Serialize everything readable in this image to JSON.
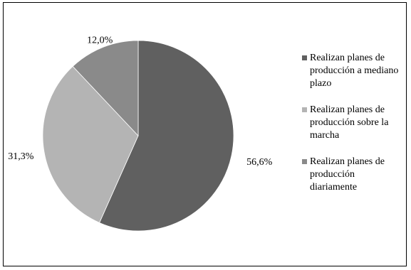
{
  "chart_data": {
    "type": "pie",
    "title": "",
    "categories": [
      "Realizan planes de producción a mediano plazo",
      "Realizan planes de producción sobre la marcha",
      "Realizan planes de producción diariamente"
    ],
    "values": [
      56.6,
      31.3,
      12.0
    ],
    "value_labels": [
      "56,6%",
      "31,3%",
      "12,0%"
    ],
    "colors": [
      "#606060",
      "#b4b4b4",
      "#8a8a8a"
    ],
    "legend_position": "right",
    "start_angle_deg": 0,
    "direction": "clockwise"
  }
}
